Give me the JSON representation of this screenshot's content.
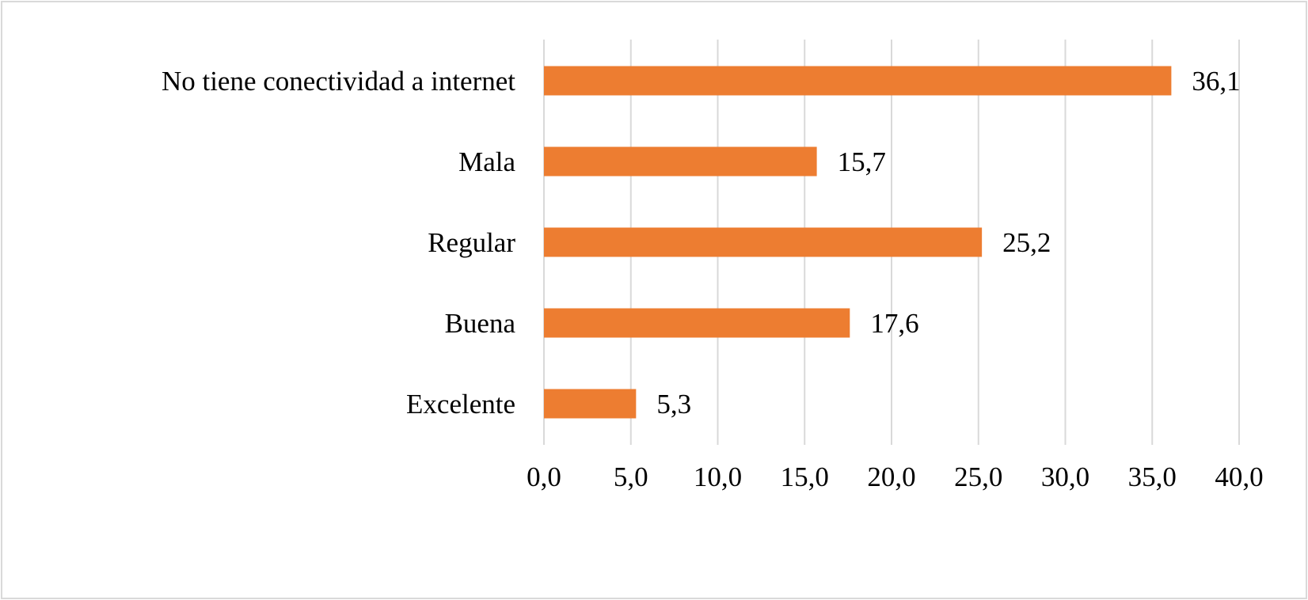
{
  "chart_data": {
    "type": "bar",
    "orientation": "horizontal",
    "title": "",
    "xlabel": "",
    "ylabel": "",
    "categories": [
      "No tiene conectividad a internet",
      "Mala",
      "Regular",
      "Buena",
      "Excelente"
    ],
    "values": [
      36.1,
      15.7,
      25.2,
      17.6,
      5.3
    ],
    "value_labels": [
      "36,1",
      "15,7",
      "25,2",
      "17,6",
      "5,3"
    ],
    "xlim": [
      0,
      40
    ],
    "ticks": [
      0,
      5,
      10,
      15,
      20,
      25,
      30,
      35,
      40
    ],
    "tick_labels": [
      "0,0",
      "5,0",
      "10,0",
      "15,0",
      "20,0",
      "25,0",
      "30,0",
      "35,0",
      "40,0"
    ],
    "grid": true,
    "legend": "none",
    "bar_color": "#ed7d31",
    "grid_color": "#d9d9d9"
  }
}
